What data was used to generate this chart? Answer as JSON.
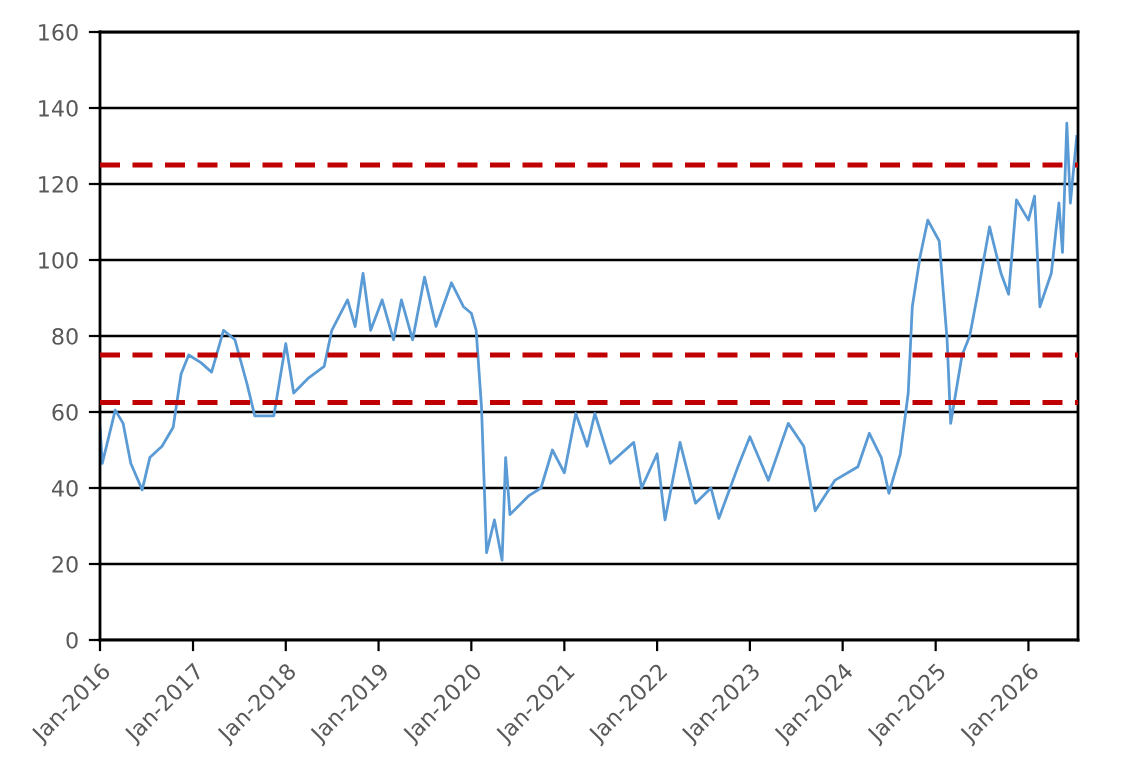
{
  "chart_data": {
    "type": "line",
    "x": [
      "2016-01-01",
      "2016-01-10",
      "2016-03-01",
      "2016-04-01",
      "2016-05-01",
      "2016-06-15",
      "2016-07-15",
      "2016-09-01",
      "2016-10-15",
      "2016-11-15",
      "2016-12-15",
      "2017-02-01",
      "2017-03-15",
      "2017-05-01",
      "2017-06-15",
      "2017-08-01",
      "2017-09-01",
      "2017-11-15",
      "2018-01-01",
      "2018-02-01",
      "2018-04-01",
      "2018-06-01",
      "2018-07-01",
      "2018-09-01",
      "2018-10-01",
      "2018-11-01",
      "2018-12-01",
      "2019-01-15",
      "2019-03-01",
      "2019-04-01",
      "2019-05-15",
      "2019-07-01",
      "2019-08-15",
      "2019-10-15",
      "2019-12-01",
      "2020-01-01",
      "2020-01-20",
      "2020-02-10",
      "2020-03-01",
      "2020-04-01",
      "2020-05-01",
      "2020-05-15",
      "2020-06-01",
      "2020-08-15",
      "2020-10-01",
      "2020-11-15",
      "2021-01-01",
      "2021-02-15",
      "2021-04-01",
      "2021-05-01",
      "2021-07-01",
      "2021-10-01",
      "2021-11-01",
      "2022-01-01",
      "2022-02-01",
      "2022-04-01",
      "2022-06-01",
      "2022-08-01",
      "2022-09-01",
      "2022-11-15",
      "2023-01-01",
      "2023-03-15",
      "2023-06-01",
      "2023-08-01",
      "2023-09-15",
      "2023-12-01",
      "2024-03-01",
      "2024-04-15",
      "2024-06-01",
      "2024-07-01",
      "2024-08-15",
      "2024-09-15",
      "2024-10-01",
      "2024-11-01",
      "2024-12-01",
      "2025-01-15",
      "2025-02-15",
      "2025-03-01",
      "2025-04-15",
      "2025-05-15",
      "2025-06-15",
      "2025-08-01",
      "2025-09-15",
      "2025-10-15",
      "2025-11-15",
      "2026-01-01",
      "2026-01-25",
      "2026-02-15",
      "2026-04-01",
      "2026-05-01",
      "2026-05-15",
      "2026-06-01",
      "2026-06-15",
      "2026-07-10"
    ],
    "series": [
      {
        "color": "#5b9bd5",
        "values": [
          56,
          46.5,
          60.5,
          57,
          46.5,
          39.5,
          48,
          51,
          56,
          70,
          75,
          73,
          70.5,
          81.5,
          79,
          67.5,
          59,
          59,
          78,
          65,
          69,
          72,
          81.5,
          89.5,
          82.5,
          96.5,
          81.5,
          89.5,
          79,
          89.5,
          79,
          95.5,
          82.5,
          94,
          87.7,
          86,
          81.5,
          61.4,
          23,
          31.6,
          21,
          48,
          33,
          38,
          40,
          50,
          44,
          59.6,
          51,
          59.6,
          46.5,
          52,
          40,
          49,
          31.6,
          52,
          36,
          40,
          32,
          45.6,
          53.5,
          42,
          57,
          51,
          34,
          42,
          45.6,
          54.4,
          48,
          38.6,
          49,
          65,
          87.7,
          101,
          110.5,
          105,
          79,
          57,
          75,
          80,
          91,
          108.7,
          96.5,
          91,
          115.8,
          110.5,
          116.8,
          87.7,
          96.5,
          115,
          102,
          136,
          115,
          132.5
        ]
      }
    ],
    "xlim": [
      "2016-01-01",
      "2026-07-15"
    ],
    "xticks": [
      {
        "value": "2016-01-01",
        "label": "Jan-2016"
      },
      {
        "value": "2017-01-01",
        "label": "Jan-2017"
      },
      {
        "value": "2018-01-01",
        "label": "Jan-2018"
      },
      {
        "value": "2019-01-01",
        "label": "Jan-2019"
      },
      {
        "value": "2020-01-01",
        "label": "Jan-2020"
      },
      {
        "value": "2021-01-01",
        "label": "Jan-2021"
      },
      {
        "value": "2022-01-01",
        "label": "Jan-2022"
      },
      {
        "value": "2023-01-01",
        "label": "Jan-2023"
      },
      {
        "value": "2024-01-01",
        "label": "Jan-2024"
      },
      {
        "value": "2025-01-01",
        "label": "Jan-2025"
      },
      {
        "value": "2026-01-01",
        "label": "Jan-2026"
      }
    ],
    "ylim": [
      0,
      160
    ],
    "yticks": [
      0,
      20,
      40,
      60,
      80,
      100,
      120,
      140,
      160
    ],
    "grid": "y",
    "ref_lines": [
      {
        "axis": "y",
        "value": 125,
        "color": "#c00000",
        "line_style": "dashed"
      },
      {
        "axis": "y",
        "value": 75,
        "color": "#c00000",
        "line_style": "dashed"
      },
      {
        "axis": "y",
        "value": 62.5,
        "color": "#c00000",
        "line_style": "dashed"
      }
    ]
  }
}
